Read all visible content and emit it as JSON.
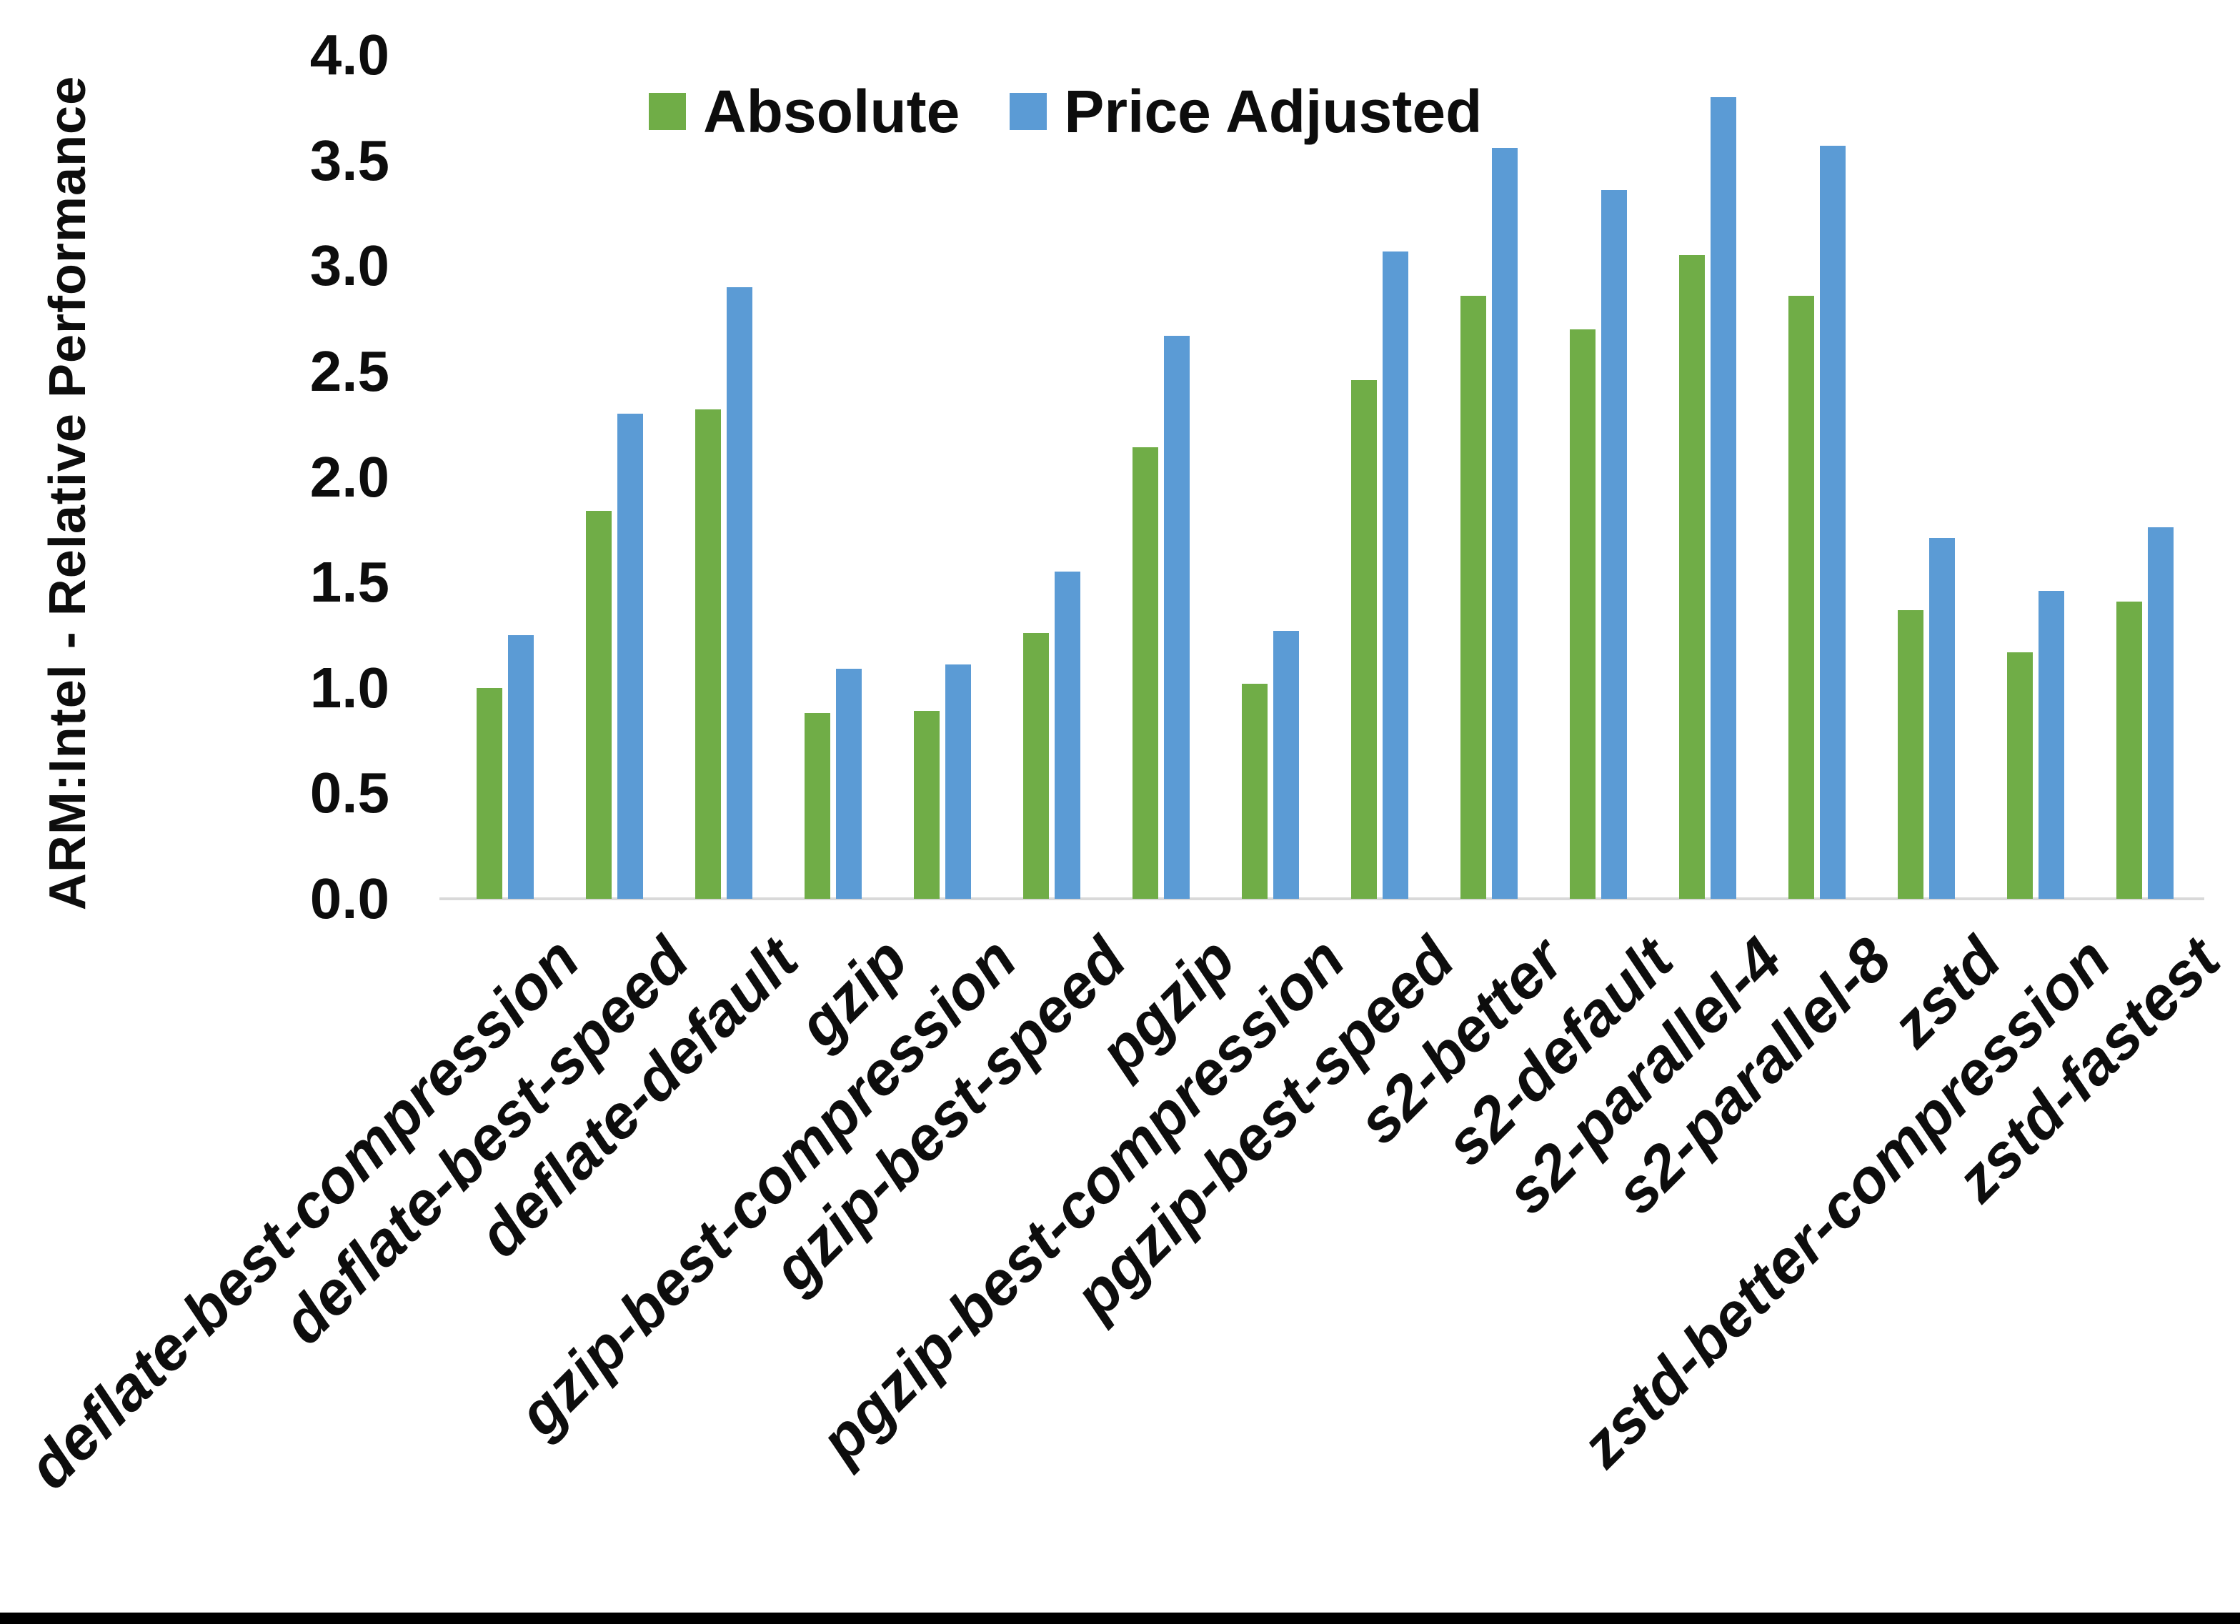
{
  "colors": {
    "absolute": "#70AD47",
    "price_adjusted": "#5B9BD5",
    "axis_line": "#d9d9d9",
    "text": "#0d0d0d",
    "bottom_strip": "#000000"
  },
  "y_axis": {
    "title": "ARM:Intel - Relative Performance",
    "tick_labels": [
      "0.0",
      "0.5",
      "1.0",
      "1.5",
      "2.0",
      "2.5",
      "3.0",
      "3.5",
      "4.0"
    ]
  },
  "legend": [
    {
      "label": "Absolute",
      "color_key": "absolute"
    },
    {
      "label": "Price Adjusted",
      "color_key": "price_adjusted"
    }
  ],
  "chart_data": {
    "type": "bar",
    "title": "",
    "xlabel": "",
    "ylabel": "ARM:Intel - Relative Performance",
    "ylim": [
      0.0,
      4.0
    ],
    "ytick_step": 0.5,
    "grid": false,
    "legend_position": "top-center",
    "categories": [
      "deflate-best-compression",
      "deflate-best-speed",
      "deflate-default",
      "gzip",
      "gzip-best-compression",
      "gzip-best-speed",
      "pgzip",
      "pgzip-best-compression",
      "pgzip-best-speed",
      "s2-better",
      "s2-default",
      "s2-parallel-4",
      "s2-parallel-8",
      "zstd",
      "zstd-better-compression",
      "zstd-fastest"
    ],
    "series": [
      {
        "name": "Absolute",
        "color": "#70AD47",
        "values": [
          1.0,
          1.84,
          2.32,
          0.88,
          0.89,
          1.26,
          2.14,
          1.02,
          2.46,
          2.86,
          2.7,
          3.05,
          2.86,
          1.37,
          1.17,
          1.41
        ]
      },
      {
        "name": "Price Adjusted",
        "color": "#5B9BD5",
        "values": [
          1.25,
          2.3,
          2.9,
          1.09,
          1.11,
          1.55,
          2.67,
          1.27,
          3.07,
          3.56,
          3.36,
          3.8,
          3.57,
          1.71,
          1.46,
          1.76
        ]
      }
    ]
  }
}
